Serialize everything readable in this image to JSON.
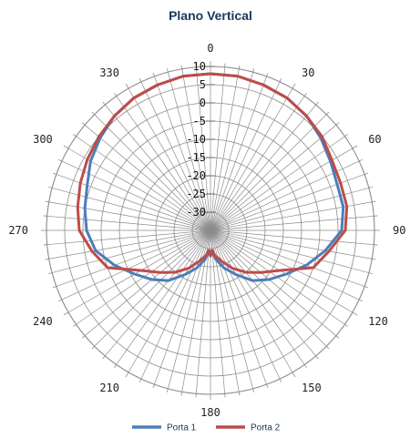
{
  "chart_data": {
    "type": "line",
    "subtype": "polar",
    "title": "Plano Vertical",
    "angle_ticks": [
      "0",
      "30",
      "60",
      "90",
      "120",
      "150",
      "180",
      "210",
      "240",
      "270",
      "300",
      "330"
    ],
    "angle_values": [
      0,
      30,
      60,
      90,
      120,
      150,
      180,
      210,
      240,
      270,
      300,
      330
    ],
    "radial_ticks": [
      "10",
      "5",
      "0",
      "-5",
      "-10",
      "-15",
      "-20",
      "-25",
      "-30"
    ],
    "radial_values": [
      10,
      5,
      0,
      -5,
      -10,
      -15,
      -20,
      -25,
      -30
    ],
    "rlim": [
      -35,
      10
    ],
    "angular_grid_step_deg": 5,
    "grid": true,
    "legend_position": "bottom",
    "colors": {
      "grid": "#8c8c8c",
      "title": "#17375e"
    },
    "series": [
      {
        "name": "Porta 1",
        "color": "#4a7ebb",
        "angle": [
          0,
          10,
          20,
          30,
          40,
          50,
          60,
          70,
          80,
          90,
          100,
          110,
          120,
          130,
          140,
          150,
          160,
          170,
          175,
          180,
          185,
          190,
          200,
          210,
          220,
          230,
          240,
          250,
          260,
          270,
          280,
          290,
          300,
          310,
          320,
          330,
          340,
          350
        ],
        "r": [
          8,
          8,
          7.5,
          7,
          6,
          4.5,
          3,
          2,
          2,
          1,
          -3,
          -7,
          -11,
          -14,
          -17,
          -21,
          -24,
          -27,
          -29.5,
          -28,
          -29.5,
          -27,
          -24,
          -21,
          -17,
          -14,
          -11,
          -7,
          -3,
          -1,
          0,
          1,
          3,
          4.5,
          6,
          7,
          7.5,
          8
        ]
      },
      {
        "name": "Porta 2",
        "color": "#be4b48",
        "angle": [
          0,
          10,
          20,
          30,
          40,
          50,
          60,
          70,
          80,
          90,
          100,
          110,
          120,
          130,
          140,
          150,
          160,
          170,
          175,
          180,
          185,
          190,
          200,
          210,
          220,
          230,
          240,
          250,
          260,
          270,
          280,
          290,
          300,
          310,
          320,
          330,
          340,
          350
        ],
        "r": [
          8,
          8,
          7.5,
          7,
          6,
          5,
          3.5,
          3,
          3,
          2,
          -2,
          -5,
          -13,
          -17,
          -20,
          -23,
          -26,
          -28,
          -29.5,
          -28,
          -29.5,
          -28,
          -26,
          -23,
          -20,
          -17,
          -13,
          -5,
          -2,
          1,
          2,
          3,
          4,
          5,
          6,
          7,
          7.5,
          8
        ]
      }
    ]
  }
}
